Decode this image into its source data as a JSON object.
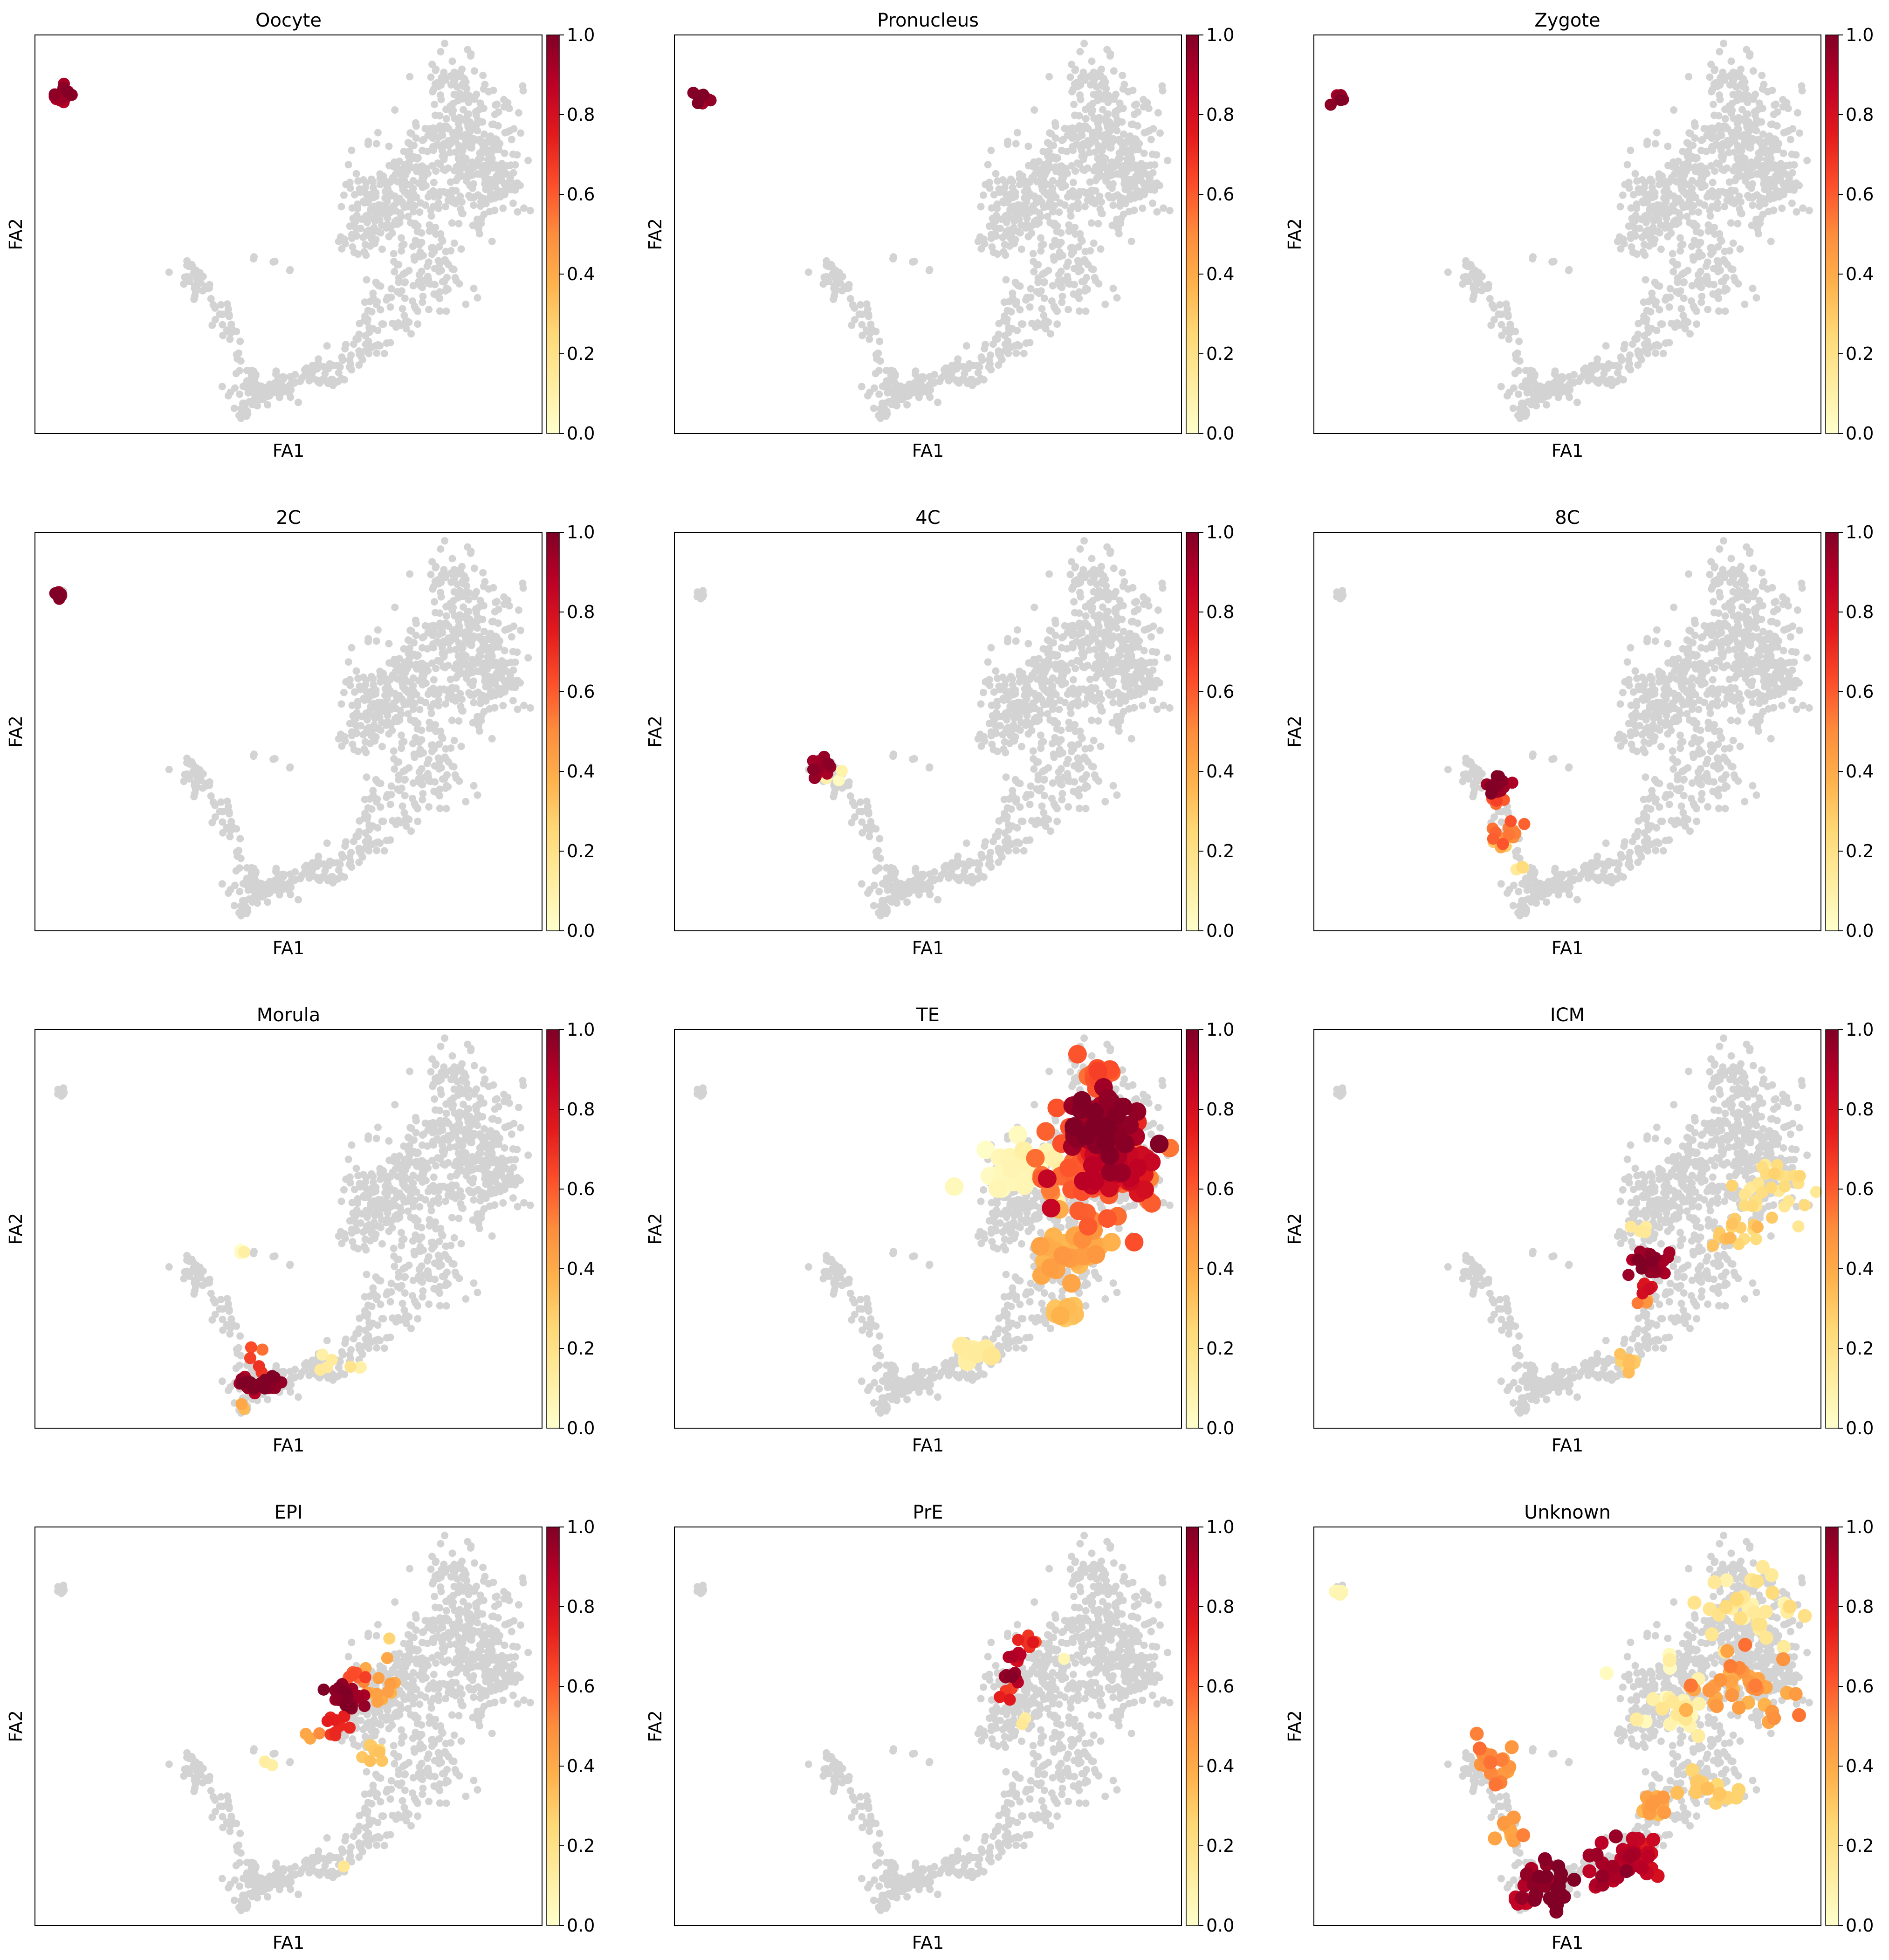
{
  "figure": {
    "xlabel": "FA1",
    "ylabel": "FA2",
    "colormap": "YlOrRd",
    "colormap_stops": [
      "#ffffcc",
      "#ffeda0",
      "#fed976",
      "#feb24c",
      "#fd8d3c",
      "#fc4e2a",
      "#e31a1c",
      "#bd0026",
      "#800026"
    ],
    "background_point_color": "#d3d3d3",
    "colorbar_ticks": [
      "0.0",
      "0.2",
      "0.4",
      "0.6",
      "0.8",
      "1.0"
    ]
  },
  "chart_data": [
    {
      "type": "scatter",
      "title": "Oocyte",
      "xlabel": "FA1",
      "ylabel": "FA2",
      "colorbar_range": [
        0,
        1
      ],
      "highlights": [
        {
          "x": 0.05,
          "y": 0.85,
          "spread": 0.012,
          "value": 0.95,
          "count": 14
        }
      ]
    },
    {
      "type": "scatter",
      "title": "Pronucleus",
      "xlabel": "FA1",
      "ylabel": "FA2",
      "colorbar_range": [
        0,
        1
      ],
      "highlights": [
        {
          "x": 0.055,
          "y": 0.84,
          "spread": 0.008,
          "value": 0.98,
          "count": 8
        }
      ]
    },
    {
      "type": "scatter",
      "title": "Zygote",
      "xlabel": "FA1",
      "ylabel": "FA2",
      "colorbar_range": [
        0,
        1
      ],
      "highlights": [
        {
          "x": 0.053,
          "y": 0.84,
          "spread": 0.008,
          "value": 0.98,
          "count": 8
        }
      ]
    },
    {
      "type": "scatter",
      "title": "2C",
      "xlabel": "FA1",
      "ylabel": "FA2",
      "colorbar_range": [
        0,
        1
      ],
      "highlights": [
        {
          "x": 0.05,
          "y": 0.84,
          "spread": 0.008,
          "value": 0.98,
          "count": 8
        }
      ]
    },
    {
      "type": "scatter",
      "title": "4C",
      "xlabel": "FA1",
      "ylabel": "FA2",
      "colorbar_range": [
        0,
        1
      ],
      "highlights": [
        {
          "x": 0.285,
          "y": 0.41,
          "spread": 0.01,
          "value": 0.95,
          "count": 14
        },
        {
          "x": 0.31,
          "y": 0.4,
          "spread": 0.01,
          "value": 0.1,
          "count": 5
        }
      ]
    },
    {
      "type": "scatter",
      "title": "8C",
      "xlabel": "FA1",
      "ylabel": "FA2",
      "colorbar_range": [
        0,
        1
      ],
      "highlights": [
        {
          "x": 0.36,
          "y": 0.37,
          "spread": 0.012,
          "value": 0.97,
          "count": 16
        },
        {
          "x": 0.355,
          "y": 0.33,
          "spread": 0.01,
          "value": 0.6,
          "count": 6
        },
        {
          "x": 0.38,
          "y": 0.25,
          "spread": 0.015,
          "value": 0.55,
          "count": 12
        },
        {
          "x": 0.37,
          "y": 0.22,
          "spread": 0.01,
          "value": 0.3,
          "count": 5
        },
        {
          "x": 0.4,
          "y": 0.16,
          "spread": 0.008,
          "value": 0.2,
          "count": 3
        }
      ]
    },
    {
      "type": "scatter",
      "title": "Morula",
      "xlabel": "FA1",
      "ylabel": "FA2",
      "colorbar_range": [
        0,
        1
      ],
      "highlights": [
        {
          "x": 0.42,
          "y": 0.11,
          "spread": 0.012,
          "value": 0.97,
          "count": 14
        },
        {
          "x": 0.46,
          "y": 0.11,
          "spread": 0.012,
          "value": 0.97,
          "count": 14
        },
        {
          "x": 0.44,
          "y": 0.19,
          "spread": 0.008,
          "value": 0.6,
          "count": 3
        },
        {
          "x": 0.45,
          "y": 0.16,
          "spread": 0.006,
          "value": 0.75,
          "count": 2
        },
        {
          "x": 0.41,
          "y": 0.05,
          "spread": 0.005,
          "value": 0.4,
          "count": 2
        },
        {
          "x": 0.41,
          "y": 0.44,
          "spread": 0.01,
          "value": 0.05,
          "count": 4
        },
        {
          "x": 0.57,
          "y": 0.15,
          "spread": 0.01,
          "value": 0.1,
          "count": 4
        },
        {
          "x": 0.63,
          "y": 0.15,
          "spread": 0.008,
          "value": 0.1,
          "count": 3
        }
      ]
    },
    {
      "type": "scatter",
      "title": "TE",
      "xlabel": "FA1",
      "ylabel": "FA2",
      "colorbar_range": [
        0,
        1
      ],
      "highlights": [
        {
          "x": 0.84,
          "y": 0.76,
          "spread": 0.035,
          "value": 0.95,
          "count": 60
        },
        {
          "x": 0.88,
          "y": 0.66,
          "spread": 0.035,
          "value": 0.85,
          "count": 50
        },
        {
          "x": 0.84,
          "y": 0.64,
          "spread": 0.06,
          "value": 0.6,
          "count": 90
        },
        {
          "x": 0.83,
          "y": 0.88,
          "spread": 0.02,
          "value": 0.6,
          "count": 16
        },
        {
          "x": 0.78,
          "y": 0.45,
          "spread": 0.035,
          "value": 0.4,
          "count": 35
        },
        {
          "x": 0.77,
          "y": 0.29,
          "spread": 0.015,
          "value": 0.3,
          "count": 12
        },
        {
          "x": 0.68,
          "y": 0.65,
          "spread": 0.04,
          "value": 0.05,
          "count": 40
        },
        {
          "x": 0.59,
          "y": 0.19,
          "spread": 0.015,
          "value": 0.1,
          "count": 10
        }
      ]
    },
    {
      "type": "scatter",
      "title": "ICM",
      "xlabel": "FA1",
      "ylabel": "FA2",
      "colorbar_range": [
        0,
        1
      ],
      "highlights": [
        {
          "x": 0.66,
          "y": 0.42,
          "spread": 0.02,
          "value": 0.95,
          "count": 25
        },
        {
          "x": 0.65,
          "y": 0.35,
          "spread": 0.01,
          "value": 0.75,
          "count": 5
        },
        {
          "x": 0.65,
          "y": 0.31,
          "spread": 0.008,
          "value": 0.45,
          "count": 3
        },
        {
          "x": 0.62,
          "y": 0.16,
          "spread": 0.015,
          "value": 0.3,
          "count": 10
        },
        {
          "x": 0.91,
          "y": 0.6,
          "spread": 0.05,
          "value": 0.2,
          "count": 30
        },
        {
          "x": 0.84,
          "y": 0.48,
          "spread": 0.03,
          "value": 0.3,
          "count": 15
        },
        {
          "x": 0.64,
          "y": 0.5,
          "spread": 0.01,
          "value": 0.15,
          "count": 4
        }
      ]
    },
    {
      "type": "scatter",
      "title": "EPI",
      "xlabel": "FA1",
      "ylabel": "FA2",
      "colorbar_range": [
        0,
        1
      ],
      "highlights": [
        {
          "x": 0.61,
          "y": 0.57,
          "spread": 0.015,
          "value": 0.95,
          "count": 25
        },
        {
          "x": 0.6,
          "y": 0.51,
          "spread": 0.012,
          "value": 0.7,
          "count": 10
        },
        {
          "x": 0.63,
          "y": 0.63,
          "spread": 0.012,
          "value": 0.6,
          "count": 8
        },
        {
          "x": 0.67,
          "y": 0.6,
          "spread": 0.025,
          "value": 0.4,
          "count": 15
        },
        {
          "x": 0.66,
          "y": 0.43,
          "spread": 0.015,
          "value": 0.3,
          "count": 8
        },
        {
          "x": 0.55,
          "y": 0.48,
          "spread": 0.01,
          "value": 0.45,
          "count": 3
        },
        {
          "x": 0.46,
          "y": 0.41,
          "spread": 0.01,
          "value": 0.1,
          "count": 3
        },
        {
          "x": 0.61,
          "y": 0.15,
          "spread": 0.005,
          "value": 0.15,
          "count": 1
        },
        {
          "x": 0.7,
          "y": 0.72,
          "spread": 0.006,
          "value": 0.25,
          "count": 1
        }
      ]
    },
    {
      "type": "scatter",
      "title": "PrE",
      "xlabel": "FA1",
      "ylabel": "FA2",
      "colorbar_range": [
        0,
        1
      ],
      "highlights": [
        {
          "x": 0.665,
          "y": 0.63,
          "spread": 0.008,
          "value": 0.95,
          "count": 10
        },
        {
          "x": 0.675,
          "y": 0.67,
          "spread": 0.008,
          "value": 0.85,
          "count": 8
        },
        {
          "x": 0.69,
          "y": 0.72,
          "spread": 0.008,
          "value": 0.7,
          "count": 6
        },
        {
          "x": 0.66,
          "y": 0.58,
          "spread": 0.006,
          "value": 0.75,
          "count": 4
        },
        {
          "x": 0.69,
          "y": 0.52,
          "spread": 0.005,
          "value": 0.15,
          "count": 2
        },
        {
          "x": 0.77,
          "y": 0.67,
          "spread": 0.005,
          "value": 0.05,
          "count": 1
        }
      ]
    },
    {
      "type": "scatter",
      "title": "Unknown",
      "xlabel": "FA1",
      "ylabel": "FA2",
      "colorbar_range": [
        0,
        1
      ],
      "highlights": [
        {
          "x": 0.46,
          "y": 0.1,
          "spread": 0.03,
          "value": 0.97,
          "count": 35
        },
        {
          "x": 0.58,
          "y": 0.13,
          "spread": 0.03,
          "value": 0.9,
          "count": 25
        },
        {
          "x": 0.64,
          "y": 0.18,
          "spread": 0.02,
          "value": 0.85,
          "count": 20
        },
        {
          "x": 0.41,
          "y": 0.06,
          "spread": 0.01,
          "value": 0.85,
          "count": 6
        },
        {
          "x": 0.35,
          "y": 0.41,
          "spread": 0.03,
          "value": 0.5,
          "count": 20
        },
        {
          "x": 0.39,
          "y": 0.24,
          "spread": 0.015,
          "value": 0.45,
          "count": 10
        },
        {
          "x": 0.68,
          "y": 0.3,
          "spread": 0.02,
          "value": 0.4,
          "count": 12
        },
        {
          "x": 0.85,
          "y": 0.6,
          "spread": 0.05,
          "value": 0.45,
          "count": 40
        },
        {
          "x": 0.85,
          "y": 0.78,
          "spread": 0.05,
          "value": 0.15,
          "count": 35
        },
        {
          "x": 0.7,
          "y": 0.55,
          "spread": 0.05,
          "value": 0.1,
          "count": 25
        },
        {
          "x": 0.78,
          "y": 0.35,
          "spread": 0.03,
          "value": 0.3,
          "count": 15
        },
        {
          "x": 0.05,
          "y": 0.84,
          "spread": 0.006,
          "value": 0.1,
          "count": 3
        }
      ]
    }
  ]
}
